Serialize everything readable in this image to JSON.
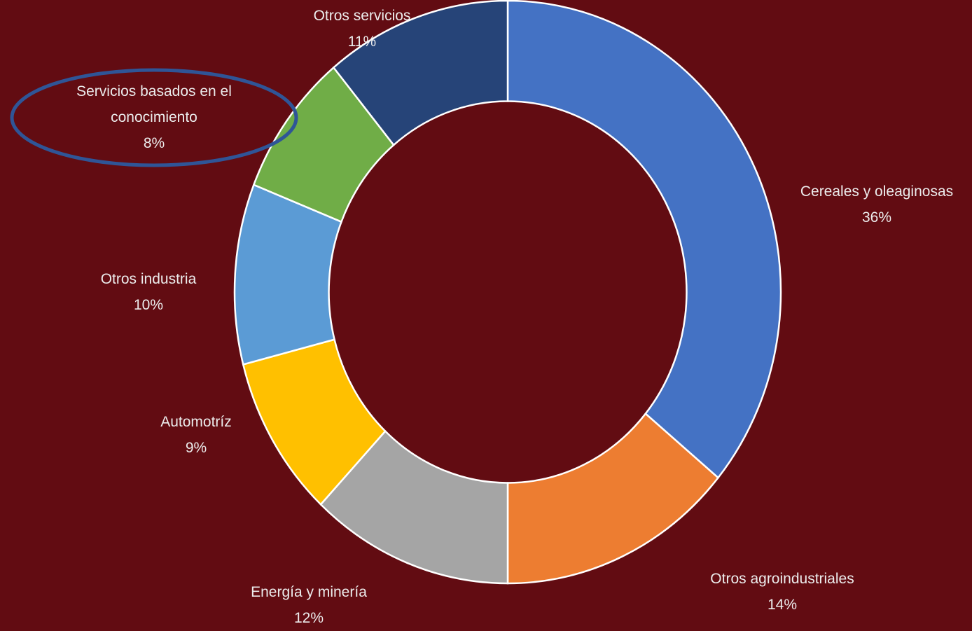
{
  "chart_data": {
    "type": "donut",
    "categories": [
      "Cereales y oleaginosas",
      "Otros agroindustriales",
      "Energía y minería",
      "Automotríz",
      "Otros industria",
      "Servicios basados en el conocimiento",
      "Otros servicios"
    ],
    "values": [
      36,
      14,
      12,
      9,
      10,
      8,
      11
    ],
    "value_labels": [
      "36%",
      "14%",
      "12%",
      "9%",
      "10%",
      "8%",
      "11%"
    ],
    "colors": [
      "#4472c4",
      "#ed7d31",
      "#a5a5a5",
      "#ffc000",
      "#5b9bd5",
      "#70ad47",
      "#264478"
    ]
  }
}
